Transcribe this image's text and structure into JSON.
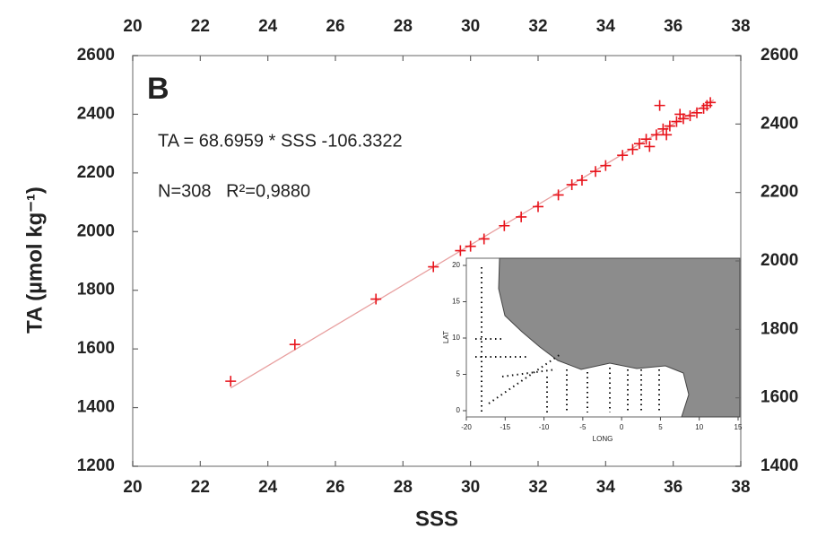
{
  "chart_data": {
    "type": "scatter",
    "panel_label": "B",
    "annotations": [
      "TA = 68.6959 * SSS -106.3322",
      "N=308   R²=0,9880"
    ],
    "xlabel": "SSS",
    "ylabel": "TA (µmol kg⁻¹)",
    "xlim": [
      20,
      38
    ],
    "xticks": [
      20,
      22,
      24,
      26,
      28,
      30,
      32,
      34,
      36,
      38
    ],
    "ylim": [
      1200,
      2600
    ],
    "yticks": [
      1200,
      1400,
      1600,
      1800,
      2000,
      2200,
      2400,
      2600
    ],
    "y2lim": [
      1400,
      2600
    ],
    "y2ticks": [
      1400,
      1600,
      1800,
      2000,
      2200,
      2400,
      2600
    ],
    "series": [
      {
        "color": "#e8141c",
        "x": [
          22.9,
          24.8,
          27.2,
          28.9,
          29.7,
          30.0,
          30.4,
          31.0,
          31.5,
          32.0,
          32.6,
          33.0,
          33.3,
          33.7,
          34.0,
          34.5,
          34.8,
          35.0,
          35.2,
          35.3,
          35.5,
          35.6,
          35.7,
          35.8,
          35.9,
          36.1,
          36.2,
          36.3,
          36.5,
          36.7,
          36.9,
          37.0,
          37.1
        ],
        "values": [
          1490,
          1615,
          1770,
          1880,
          1935,
          1950,
          1975,
          2020,
          2050,
          2085,
          2125,
          2160,
          2175,
          2205,
          2225,
          2260,
          2280,
          2300,
          2315,
          2290,
          2330,
          2430,
          2350,
          2330,
          2360,
          2375,
          2400,
          2385,
          2395,
          2405,
          2420,
          2430,
          2440
        ]
      }
    ],
    "fit_line": {
      "color": "#e8a0a0",
      "x": [
        22.9,
        37.2
      ],
      "values": [
        1466.8,
        2449.2
      ]
    },
    "inset": {
      "xlabel": "LONG",
      "ylabel": "LAT",
      "xlim": [
        -20,
        15
      ],
      "xticks": [
        -20,
        -15,
        -10,
        -5,
        0,
        5,
        10,
        15
      ],
      "ylim": [
        0,
        20
      ],
      "yticks": [
        0,
        5,
        10,
        15,
        20
      ]
    }
  }
}
